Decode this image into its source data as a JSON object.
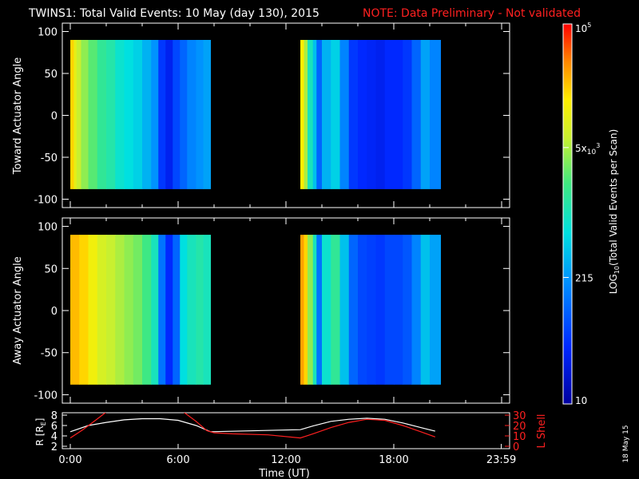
{
  "header": {
    "title": "TWINS1: Total Valid Events: 10 May (day 130), 2015",
    "note": "NOTE: Data Preliminary - Not validated",
    "note_color": "#ff2020"
  },
  "footer": {
    "date_stamp": "18 May 15"
  },
  "chart_data": [
    {
      "type": "heatmap",
      "ylabel": "Toward Actuator Angle",
      "ylim": [
        -110,
        110
      ],
      "yticks": [
        "100",
        "50",
        "0",
        "-50",
        "-100"
      ],
      "xlim_hours": [
        0,
        24
      ],
      "data_blocks_hours": [
        [
          0,
          7.8
        ],
        [
          12.8,
          20.6
        ]
      ],
      "angle_range": [
        -88,
        90
      ],
      "columns_log10": [
        [
          0.0,
          4.3
        ],
        [
          0.2,
          4.0
        ],
        [
          0.35,
          3.8
        ],
        [
          0.6,
          3.6
        ],
        [
          1.0,
          3.4
        ],
        [
          1.5,
          3.2
        ],
        [
          2.0,
          3.1
        ],
        [
          2.5,
          2.9
        ],
        [
          3.0,
          2.8
        ],
        [
          3.5,
          2.7
        ],
        [
          4.0,
          2.5
        ],
        [
          4.5,
          2.3
        ],
        [
          4.9,
          1.7
        ],
        [
          5.3,
          1.5
        ],
        [
          5.7,
          1.8
        ],
        [
          6.1,
          2.0
        ],
        [
          6.5,
          2.2
        ],
        [
          7.0,
          2.3
        ],
        [
          7.4,
          2.4
        ],
        [
          12.8,
          4.2
        ],
        [
          13.0,
          3.7
        ],
        [
          13.2,
          3.0
        ],
        [
          13.5,
          2.6
        ],
        [
          13.7,
          2.0
        ],
        [
          14.0,
          2.5
        ],
        [
          14.5,
          2.7
        ],
        [
          15.0,
          2.2
        ],
        [
          15.5,
          1.7
        ],
        [
          16.0,
          1.6
        ],
        [
          16.5,
          1.55
        ],
        [
          17.0,
          1.5
        ],
        [
          17.5,
          1.6
        ],
        [
          18.0,
          1.6
        ],
        [
          18.5,
          1.7
        ],
        [
          19.0,
          2.0
        ],
        [
          19.5,
          2.4
        ],
        [
          20.0,
          2.2
        ]
      ]
    },
    {
      "type": "heatmap",
      "ylabel": "Away Actuator Angle",
      "ylim": [
        -110,
        110
      ],
      "yticks": [
        "100",
        "50",
        "0",
        "-50",
        "-100"
      ],
      "xlim_hours": [
        0,
        24
      ],
      "data_blocks_hours": [
        [
          0,
          7.8
        ],
        [
          12.8,
          20.6
        ]
      ],
      "angle_range": [
        -88,
        90
      ],
      "columns_log10": [
        [
          0.0,
          4.4
        ],
        [
          0.5,
          4.3
        ],
        [
          1.0,
          4.1
        ],
        [
          1.5,
          3.9
        ],
        [
          2.0,
          3.8
        ],
        [
          2.5,
          3.7
        ],
        [
          3.0,
          3.6
        ],
        [
          3.5,
          3.5
        ],
        [
          4.0,
          3.3
        ],
        [
          4.5,
          3.0
        ],
        [
          4.9,
          2.1
        ],
        [
          5.3,
          1.6
        ],
        [
          5.7,
          2.0
        ],
        [
          6.1,
          2.8
        ],
        [
          6.5,
          3.0
        ],
        [
          7.0,
          3.1
        ],
        [
          7.4,
          3.0
        ],
        [
          12.8,
          4.5
        ],
        [
          13.0,
          4.3
        ],
        [
          13.2,
          3.6
        ],
        [
          13.5,
          3.0
        ],
        [
          13.7,
          2.1
        ],
        [
          14.0,
          2.9
        ],
        [
          14.5,
          3.2
        ],
        [
          15.0,
          2.6
        ],
        [
          15.5,
          2.0
        ],
        [
          16.0,
          1.8
        ],
        [
          16.5,
          1.75
        ],
        [
          17.0,
          1.7
        ],
        [
          17.5,
          1.8
        ],
        [
          18.0,
          1.8
        ],
        [
          18.5,
          1.9
        ],
        [
          19.0,
          2.2
        ],
        [
          19.5,
          2.6
        ],
        [
          20.0,
          2.4
        ]
      ]
    },
    {
      "type": "line",
      "ylabel_left": "R [R",
      "ylabel_left_sub": "E",
      "ylabel_left_end": "]",
      "ylabel_right": "L Shell",
      "ylim_left": [
        2,
        8
      ],
      "yticks_left": [
        "8",
        "6",
        "4",
        "2"
      ],
      "ylim_right": [
        0,
        30
      ],
      "yticks_right": [
        "30",
        "20",
        "10",
        "0"
      ],
      "xlabel": "Time (UT)",
      "xticks": [
        "0:00",
        "6:00",
        "12:00",
        "18:00",
        "23:59"
      ],
      "xtick_hours": [
        0,
        6,
        12,
        18,
        23.98
      ],
      "series": [
        {
          "color": "#ffffff",
          "axis": "left",
          "points": [
            [
              0,
              4.8
            ],
            [
              1,
              6.0
            ],
            [
              2,
              6.6
            ],
            [
              3,
              7.1
            ],
            [
              4,
              7.3
            ],
            [
              5,
              7.3
            ],
            [
              6,
              7.0
            ],
            [
              7,
              6.0
            ],
            [
              7.8,
              4.8
            ],
            [
              12.8,
              5.2
            ],
            [
              13.5,
              5.9
            ],
            [
              14.5,
              6.8
            ],
            [
              15.5,
              7.2
            ],
            [
              16.5,
              7.4
            ],
            [
              17.5,
              7.2
            ],
            [
              18.5,
              6.5
            ],
            [
              19.5,
              5.6
            ],
            [
              20.3,
              4.9
            ]
          ]
        },
        {
          "color": "#ff2020",
          "axis": "right",
          "points": [
            [
              0,
              8
            ],
            [
              0.7,
              16
            ],
            [
              1.4,
              25
            ],
            [
              2,
              33
            ],
            [
              6.3,
              33
            ],
            [
              7,
              24
            ],
            [
              7.6,
              15
            ],
            [
              8,
              13
            ],
            [
              9,
              12
            ],
            [
              11,
              11
            ],
            [
              12.8,
              8
            ],
            [
              13.5,
              12
            ],
            [
              14.5,
              18
            ],
            [
              15.5,
              23
            ],
            [
              16.5,
              26
            ],
            [
              17.5,
              25
            ],
            [
              18.5,
              20
            ],
            [
              19.5,
              14
            ],
            [
              20.3,
              9
            ]
          ]
        }
      ]
    },
    {
      "type": "heatmap",
      "role": "colorbar",
      "ylabel_pre": "LOG",
      "ylabel_sub": "10",
      "ylabel_post": "(Total Valid Events per Scan)",
      "log10_range": [
        1,
        5
      ],
      "ticks": [
        {
          "log10": 5,
          "base": "10",
          "sup": "5",
          "mant": "",
          "exp": ""
        },
        {
          "log10": 3.699,
          "base": "",
          "sup": "",
          "mant": "5x",
          "exp": "10",
          "exp_sup": "3"
        },
        {
          "log10": 2.332,
          "base": "215",
          "sup": "",
          "mant": "",
          "exp": ""
        },
        {
          "log10": 1,
          "base": "10",
          "sup": "",
          "mant": "",
          "exp": ""
        }
      ]
    }
  ]
}
